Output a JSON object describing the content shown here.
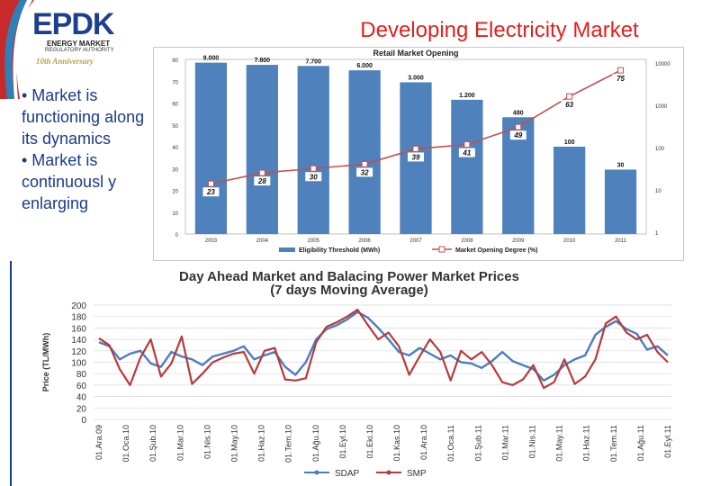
{
  "header": {
    "title": "Developing Electricity Market",
    "logo_text": "EPDK",
    "logo_sub1": "ENERGY MARKET",
    "logo_sub2": "REGULATORY AUTHORITY",
    "logo_anniversary": "10th Anniversary"
  },
  "bullets": [
    "• Market is functioning along its dynamics",
    "• Market is continuousl y enlarging"
  ],
  "colors": {
    "title": "#e0211b",
    "bullets": "#1a3a8a",
    "bar": "#4f81bd",
    "line_red": "#c0504d",
    "sdap": "#4a7ec0",
    "smp": "#b83a3a"
  },
  "chart_data": [
    {
      "type": "bar",
      "title": "Retail Market Opening",
      "categories": [
        "2003",
        "2004",
        "2005",
        "2006",
        "2007",
        "2008",
        "2009",
        "2010",
        "2011"
      ],
      "series": [
        {
          "name": "Eligibility Threshold (MWh)",
          "axis": "left",
          "bar_labels": [
            "9.000",
            "7.800",
            "7.700",
            "6.000",
            "3.000",
            "1.200",
            "480",
            "100",
            "30"
          ],
          "values": [
            78.5,
            77.5,
            77.0,
            75.0,
            69.5,
            61.5,
            53.5,
            40.0,
            29.5
          ]
        },
        {
          "name": "Market Opening Degree (%)",
          "type": "line",
          "axis": "left",
          "values": [
            23,
            28,
            30,
            32,
            39,
            41,
            49,
            63,
            75
          ]
        }
      ],
      "y_left": {
        "ticks": [
          "0",
          "10",
          "20",
          "30",
          "40",
          "50",
          "60",
          "70",
          "80"
        ],
        "range": [
          0,
          80
        ]
      },
      "y_right": {
        "ticks": [
          "1",
          "10",
          "100",
          "1000",
          "10000"
        ]
      }
    },
    {
      "type": "line",
      "title": "Day Ahead Market and Balacing Power Market Prices",
      "subtitle": "(7 days Moving Average)",
      "ylabel": "Price (TL/MWh)",
      "ylim": [
        0,
        200
      ],
      "y_ticks": [
        "0",
        "20",
        "40",
        "60",
        "80",
        "100",
        "120",
        "140",
        "160",
        "180",
        "200"
      ],
      "x_ticks": [
        "01.Ara.09",
        "01.Oca.10",
        "01.Şub.10",
        "01.Mar.10",
        "01.Nis.10",
        "01.May.10",
        "01.Haz.10",
        "01.Tem.10",
        "01.Ağu.10",
        "01.Eyl.10",
        "01.Eki.10",
        "01.Kas.10",
        "01.Ara.10",
        "01.Oca.11",
        "01.Şub.11",
        "01.Mar.11",
        "01.Nis.11",
        "01.May.11",
        "01.Haz.11",
        "01.Tem.11",
        "01.Ağu.11",
        "01.Eyl.11"
      ],
      "series": [
        {
          "name": "SDAP",
          "values": [
            135,
            128,
            105,
            115,
            120,
            98,
            92,
            118,
            110,
            105,
            95,
            110,
            115,
            120,
            128,
            105,
            112,
            118,
            92,
            78,
            100,
            140,
            158,
            165,
            175,
            188,
            178,
            160,
            140,
            118,
            112,
            125,
            115,
            105,
            112,
            100,
            98,
            90,
            102,
            118,
            102,
            95,
            88,
            68,
            78,
            95,
            105,
            112,
            148,
            162,
            172,
            158,
            150,
            122,
            128,
            112
          ]
        },
        {
          "name": "SMP",
          "values": [
            142,
            130,
            88,
            60,
            108,
            140,
            75,
            98,
            145,
            62,
            80,
            100,
            108,
            115,
            118,
            80,
            120,
            125,
            70,
            68,
            72,
            135,
            162,
            170,
            180,
            192,
            165,
            140,
            152,
            128,
            78,
            110,
            140,
            118,
            68,
            120,
            105,
            118,
            95,
            65,
            60,
            70,
            95,
            55,
            65,
            105,
            62,
            75,
            105,
            168,
            180,
            152,
            140,
            148,
            118,
            100
          ]
        }
      ],
      "legend": [
        "SDAP",
        "SMP"
      ]
    }
  ]
}
